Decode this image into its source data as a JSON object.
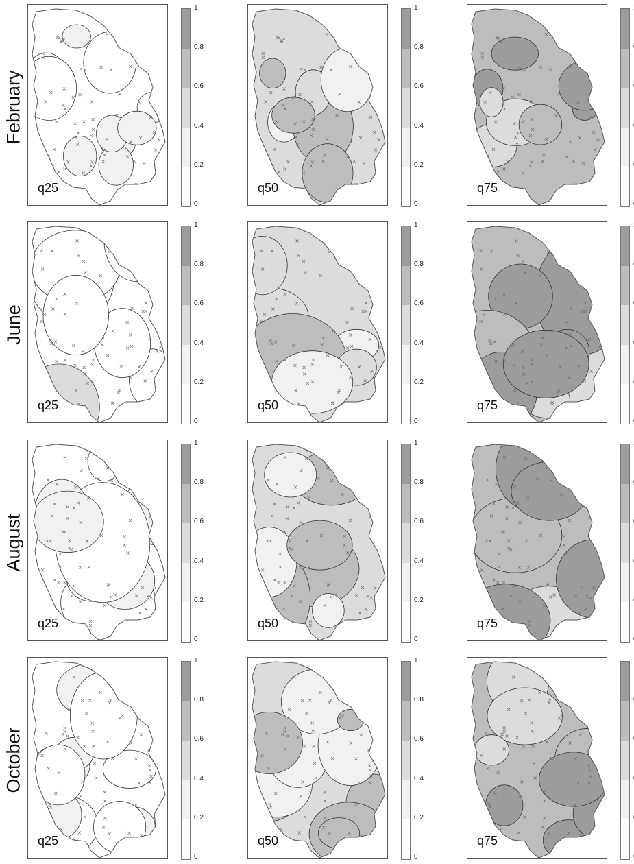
{
  "rows": [
    {
      "label": "February",
      "seed": 1,
      "patch_scale": 1.0
    },
    {
      "label": "June",
      "seed": 2,
      "patch_scale": 1.8
    },
    {
      "label": "August",
      "seed": 3,
      "patch_scale": 1.6
    },
    {
      "label": "October",
      "seed": 4,
      "patch_scale": 1.3
    }
  ],
  "columns": [
    {
      "label": "q25",
      "base_level": 0.1
    },
    {
      "label": "q50",
      "base_level": 0.45
    },
    {
      "label": "q75",
      "base_level": 0.7
    }
  ],
  "colorbar": {
    "ticks": [
      "0",
      "0.2",
      "0.4",
      "0.6",
      "0.8",
      "1"
    ],
    "classes": [
      {
        "range": [
          0,
          0.2
        ],
        "color": "#ffffff"
      },
      {
        "range": [
          0.2,
          0.4
        ],
        "color": "#f1f1f1"
      },
      {
        "range": [
          0.4,
          0.6
        ],
        "color": "#dcdcdc"
      },
      {
        "range": [
          0.6,
          0.8
        ],
        "color": "#bdbdbd"
      },
      {
        "range": [
          0.8,
          1.0
        ],
        "color": "#9c9c9c"
      }
    ]
  },
  "colors": {
    "outline": "#555555",
    "station_marker": "#6e6e6e",
    "contour": "#333333"
  }
}
